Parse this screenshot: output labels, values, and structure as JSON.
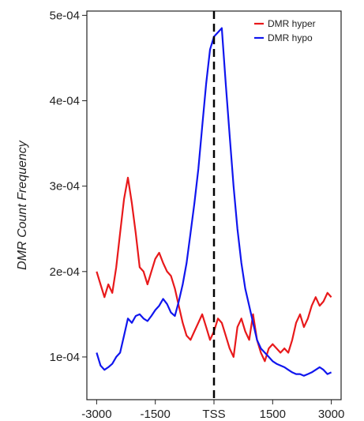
{
  "chart_data": {
    "type": "line",
    "title": "",
    "xlabel": "",
    "ylabel": "DMR Count Frequency",
    "xlim": [
      -3250,
      3250
    ],
    "ylim": [
      5e-05,
      0.000505
    ],
    "x_ticks": [
      -3000,
      -1500,
      0,
      1500,
      3000
    ],
    "x_tick_labels": [
      "-3000",
      "-1500",
      "TSS",
      "1500",
      "3000"
    ],
    "y_ticks": [
      0.0001,
      0.0002,
      0.0003,
      0.0004,
      0.0005
    ],
    "y_tick_labels": [
      "1e-04",
      "2e-04",
      "3e-04",
      "4e-04",
      "5e-04"
    ],
    "vline": {
      "x": 0,
      "style": "dashed",
      "color": "#000000"
    },
    "legend_position": "top-right",
    "grid": false,
    "series": [
      {
        "name": "DMR hyper",
        "color": "#e8191b",
        "x": [
          -3000,
          -2900,
          -2800,
          -2700,
          -2600,
          -2500,
          -2400,
          -2300,
          -2200,
          -2100,
          -2000,
          -1900,
          -1800,
          -1700,
          -1600,
          -1500,
          -1400,
          -1300,
          -1200,
          -1100,
          -1000,
          -900,
          -800,
          -700,
          -600,
          -500,
          -400,
          -300,
          -200,
          -100,
          0,
          100,
          200,
          300,
          400,
          500,
          600,
          700,
          800,
          900,
          1000,
          1100,
          1200,
          1300,
          1400,
          1500,
          1600,
          1700,
          1800,
          1900,
          2000,
          2100,
          2200,
          2300,
          2400,
          2500,
          2600,
          2700,
          2800,
          2900,
          3000
        ],
        "y": [
          0.0002,
          0.000185,
          0.00017,
          0.000185,
          0.000175,
          0.000205,
          0.000245,
          0.000285,
          0.00031,
          0.00028,
          0.000245,
          0.000205,
          0.0002,
          0.000185,
          0.0002,
          0.000215,
          0.000222,
          0.00021,
          0.0002,
          0.000195,
          0.00018,
          0.00016,
          0.00014,
          0.000125,
          0.00012,
          0.00013,
          0.00014,
          0.00015,
          0.000135,
          0.00012,
          0.00013,
          0.000145,
          0.00014,
          0.000125,
          0.00011,
          0.0001,
          0.000135,
          0.000145,
          0.00013,
          0.00012,
          0.00015,
          0.00012,
          0.000105,
          9.5e-05,
          0.00011,
          0.000115,
          0.00011,
          0.000105,
          0.00011,
          0.000105,
          0.00012,
          0.00014,
          0.00015,
          0.000135,
          0.000145,
          0.00016,
          0.00017,
          0.00016,
          0.000165,
          0.000175,
          0.00017
        ]
      },
      {
        "name": "DMR hypo",
        "color": "#1016ee",
        "x": [
          -3000,
          -2900,
          -2800,
          -2700,
          -2600,
          -2500,
          -2400,
          -2300,
          -2200,
          -2100,
          -2000,
          -1900,
          -1800,
          -1700,
          -1600,
          -1500,
          -1400,
          -1300,
          -1200,
          -1100,
          -1000,
          -900,
          -800,
          -700,
          -600,
          -500,
          -400,
          -300,
          -200,
          -100,
          0,
          100,
          200,
          300,
          400,
          500,
          600,
          700,
          800,
          900,
          1000,
          1100,
          1200,
          1300,
          1400,
          1500,
          1600,
          1700,
          1800,
          1900,
          2000,
          2100,
          2200,
          2300,
          2400,
          2500,
          2600,
          2700,
          2800,
          2900,
          3000
        ],
        "y": [
          0.000105,
          9e-05,
          8.5e-05,
          8.8e-05,
          9.2e-05,
          0.0001,
          0.000105,
          0.000125,
          0.000145,
          0.00014,
          0.000148,
          0.00015,
          0.000145,
          0.000142,
          0.000148,
          0.000155,
          0.00016,
          0.000168,
          0.000162,
          0.000152,
          0.000148,
          0.000165,
          0.000185,
          0.00021,
          0.000245,
          0.00028,
          0.00032,
          0.00037,
          0.00042,
          0.00046,
          0.000475,
          0.00048,
          0.000485,
          0.00042,
          0.00036,
          0.0003,
          0.00025,
          0.00021,
          0.00018,
          0.00016,
          0.00014,
          0.00012,
          0.00011,
          0.000105,
          0.0001,
          9.5e-05,
          9.2e-05,
          9e-05,
          8.8e-05,
          8.5e-05,
          8.2e-05,
          8e-05,
          8e-05,
          7.8e-05,
          8e-05,
          8.2e-05,
          8.5e-05,
          8.8e-05,
          8.5e-05,
          8e-05,
          8.2e-05
        ]
      }
    ]
  }
}
